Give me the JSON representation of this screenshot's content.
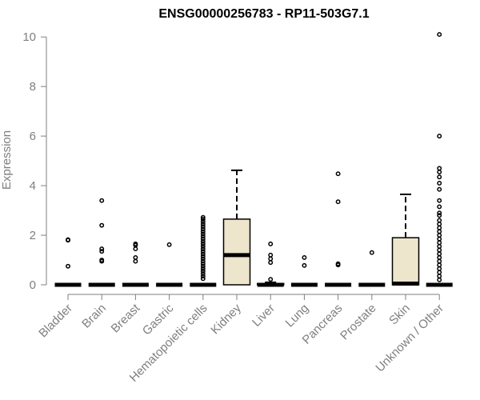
{
  "chart_data": {
    "type": "box",
    "title": "ENSG00000256783 - RP11-503G7.1",
    "xlabel": "",
    "ylabel": "Expression",
    "ylim": [
      0,
      10.2
    ],
    "yticks": [
      0,
      2,
      4,
      6,
      8,
      10
    ],
    "box_fill": "#ede5cc",
    "categories": [
      "Bladder",
      "Brain",
      "Breast",
      "Gastric",
      "Hematopoietic cells",
      "Kidney",
      "Liver",
      "Lung",
      "Pancreas",
      "Prostate",
      "Skin",
      "Unknown / Other"
    ],
    "boxes": [
      {
        "category": "Bladder",
        "q1": 0,
        "median": 0,
        "q3": 0,
        "whisker_low": 0,
        "whisker_high": 0,
        "outliers": [
          0.75,
          1.8,
          1.82
        ]
      },
      {
        "category": "Brain",
        "q1": 0,
        "median": 0,
        "q3": 0,
        "whisker_low": 0,
        "whisker_high": 0,
        "outliers": [
          0.95,
          1.0,
          1.35,
          1.45,
          2.4,
          3.4
        ]
      },
      {
        "category": "Breast",
        "q1": 0,
        "median": 0,
        "q3": 0,
        "whisker_low": 0,
        "whisker_high": 0,
        "outliers": [
          0.95,
          1.1,
          1.45,
          1.6,
          1.65
        ]
      },
      {
        "category": "Gastric",
        "q1": 0,
        "median": 0,
        "q3": 0,
        "whisker_low": 0,
        "whisker_high": 0,
        "outliers": [
          1.62
        ]
      },
      {
        "category": "Hematopoietic cells",
        "q1": 0,
        "median": 0,
        "q3": 0,
        "whisker_low": 0,
        "whisker_high": 0,
        "outliers": [
          0.25,
          0.35,
          0.45,
          0.55,
          0.65,
          0.75,
          0.85,
          0.95,
          1.05,
          1.15,
          1.25,
          1.35,
          1.45,
          1.55,
          1.65,
          1.75,
          1.85,
          1.95,
          2.05,
          2.15,
          2.25,
          2.35,
          2.45,
          2.55,
          2.65,
          2.72
        ]
      },
      {
        "category": "Kidney",
        "q1": 0,
        "median": 1.2,
        "q3": 2.65,
        "whisker_low": 0,
        "whisker_high": 4.62,
        "outliers": []
      },
      {
        "category": "Liver",
        "q1": 0,
        "median": 0,
        "q3": 0.05,
        "whisker_low": 0,
        "whisker_high": 0.1,
        "outliers": [
          0.22,
          0.9,
          1.05,
          1.2,
          1.65
        ]
      },
      {
        "category": "Lung",
        "q1": 0,
        "median": 0,
        "q3": 0,
        "whisker_low": 0,
        "whisker_high": 0,
        "outliers": [
          0.78,
          1.1
        ]
      },
      {
        "category": "Pancreas",
        "q1": 0,
        "median": 0,
        "q3": 0,
        "whisker_low": 0,
        "whisker_high": 0,
        "outliers": [
          0.8,
          0.85,
          3.35,
          4.48
        ]
      },
      {
        "category": "Prostate",
        "q1": 0,
        "median": 0,
        "q3": 0,
        "whisker_low": 0,
        "whisker_high": 0,
        "outliers": [
          1.3
        ]
      },
      {
        "category": "Skin",
        "q1": 0,
        "median": 0.05,
        "q3": 1.9,
        "whisker_low": 0,
        "whisker_high": 3.65,
        "outliers": []
      },
      {
        "category": "Unknown / Other",
        "q1": 0,
        "median": 0,
        "q3": 0,
        "whisker_low": 0,
        "whisker_high": 0,
        "outliers": [
          0.2,
          0.35,
          0.5,
          0.65,
          0.8,
          0.95,
          1.1,
          1.25,
          1.4,
          1.55,
          1.7,
          1.85,
          2.0,
          2.15,
          2.3,
          2.45,
          2.6,
          2.8,
          2.9,
          3.15,
          3.4,
          3.85,
          4.1,
          4.35,
          4.55,
          4.7,
          6.0,
          10.1
        ]
      }
    ]
  }
}
